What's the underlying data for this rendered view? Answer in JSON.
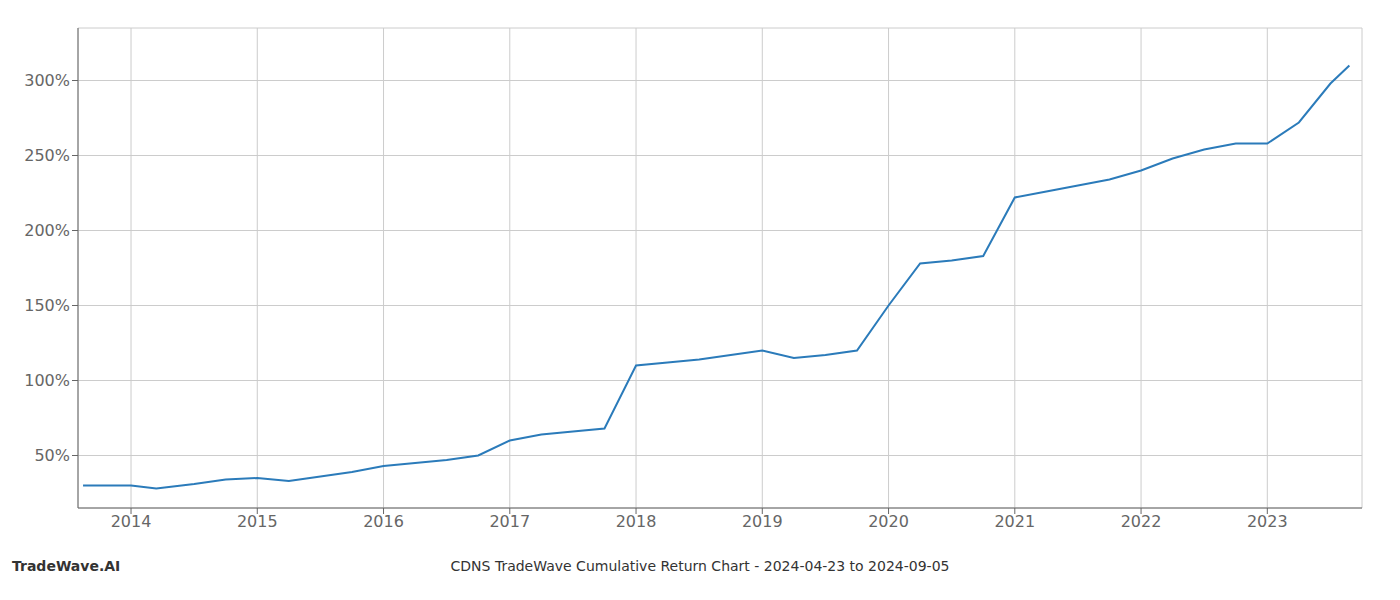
{
  "chart_data": {
    "type": "line",
    "title": "CDNS TradeWave Cumulative Return Chart - 2024-04-23 to 2024-09-05",
    "annotations": [
      "TradeWave.AI"
    ],
    "x": [
      2013.62,
      2014.0,
      2014.2,
      2014.5,
      2014.75,
      2015.0,
      2015.25,
      2015.5,
      2015.75,
      2016.0,
      2016.25,
      2016.5,
      2016.75,
      2017.0,
      2017.25,
      2017.5,
      2017.75,
      2018.0,
      2018.25,
      2018.5,
      2018.75,
      2019.0,
      2019.25,
      2019.5,
      2019.75,
      2020.0,
      2020.25,
      2020.5,
      2020.75,
      2021.0,
      2021.25,
      2021.5,
      2021.75,
      2022.0,
      2022.25,
      2022.5,
      2022.75,
      2023.0,
      2023.25,
      2023.5,
      2023.65
    ],
    "values": [
      30,
      30,
      28,
      31,
      34,
      35,
      33,
      36,
      39,
      43,
      45,
      47,
      50,
      60,
      64,
      66,
      68,
      110,
      112,
      114,
      117,
      120,
      115,
      117,
      120,
      150,
      178,
      180,
      183,
      222,
      226,
      230,
      234,
      240,
      248,
      254,
      258,
      258,
      272,
      298,
      310
    ],
    "color": "#2b7bba",
    "xlim": [
      2013.58,
      2023.75
    ],
    "xticks": [
      2014,
      2015,
      2016,
      2017,
      2018,
      2019,
      2020,
      2021,
      2022,
      2023
    ],
    "ylim": [
      15,
      335
    ],
    "yticks": [
      {
        "value": 50,
        "label": "50%"
      },
      {
        "value": 100,
        "label": "100%"
      },
      {
        "value": 150,
        "label": "150%"
      },
      {
        "value": 200,
        "label": "200%"
      },
      {
        "value": 250,
        "label": "250%"
      },
      {
        "value": 300,
        "label": "300%"
      }
    ],
    "grid": true
  }
}
